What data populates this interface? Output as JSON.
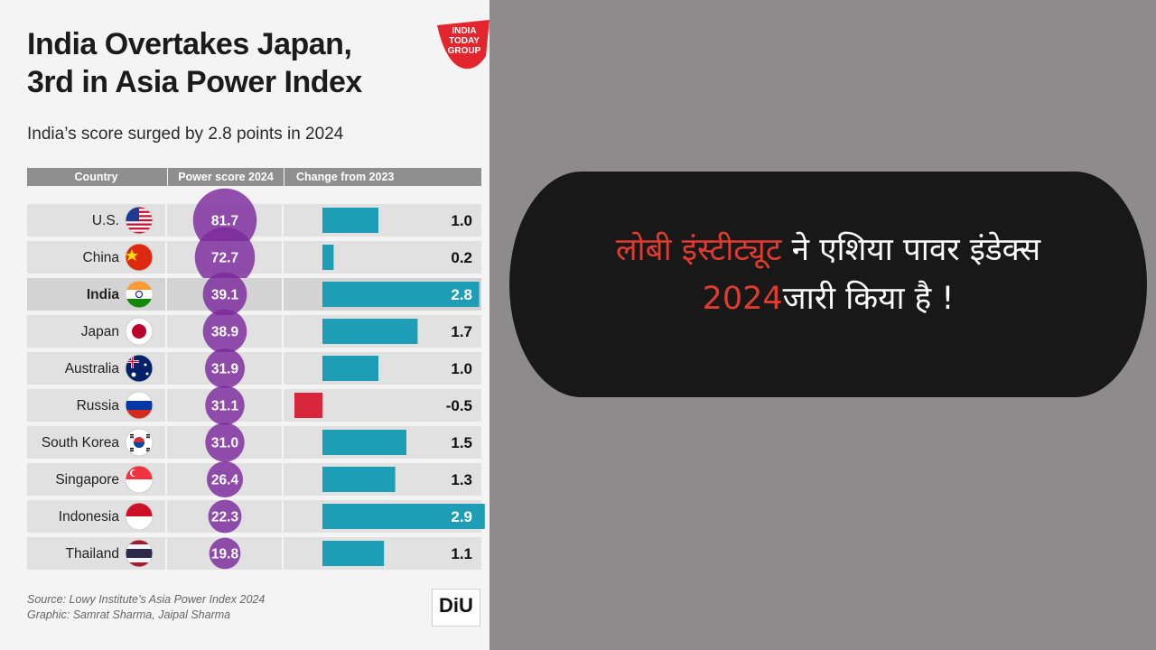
{
  "infographic": {
    "title_line1": "India Overtakes Japan,",
    "title_line2": "3rd in Asia Power Index",
    "subtitle": "India’s score surged by 2.8 points in 2024",
    "logo_lines": [
      "INDIA",
      "TODAY",
      "GROUP"
    ],
    "source_line1": "Source: Lowy Institute’s Asia Power Index 2024",
    "source_line2": "Graphic: Samrat Sharma, Jaipal Sharma",
    "diu_logo": "DiU"
  },
  "callout": {
    "line1_red": "लोबी इंस्टीट्यूट",
    "line1_white": " ने एशिया पावर इंडेक्स",
    "line2_red": "2024",
    "line2_white": "जारी किया है !"
  },
  "chart_data": {
    "type": "table",
    "columns": [
      "Country",
      "Power score 2024",
      "Change from 2023"
    ],
    "highlighted_country": "India",
    "colors": {
      "score_bubble": "#7b2a9c",
      "positive_bar": "#1d9db6",
      "negative_bar": "#d9263b",
      "row_bg": "#e1e1e1",
      "row_highlight": "#d3d3d3"
    },
    "rows": [
      {
        "country": "U.S.",
        "flag": "us-flag",
        "score": 81.7,
        "change": 1.0,
        "score_label": "81.7",
        "change_label": "1.0"
      },
      {
        "country": "China",
        "flag": "china-flag",
        "score": 72.7,
        "change": 0.2,
        "score_label": "72.7",
        "change_label": "0.2"
      },
      {
        "country": "India",
        "flag": "india-flag",
        "score": 39.1,
        "change": 2.8,
        "score_label": "39.1",
        "change_label": "2.8"
      },
      {
        "country": "Japan",
        "flag": "japan-flag",
        "score": 38.9,
        "change": 1.7,
        "score_label": "38.9",
        "change_label": "1.7"
      },
      {
        "country": "Australia",
        "flag": "australia-flag",
        "score": 31.9,
        "change": 1.0,
        "score_label": "31.9",
        "change_label": "1.0"
      },
      {
        "country": "Russia",
        "flag": "russia-flag",
        "score": 31.1,
        "change": -0.5,
        "score_label": "31.1",
        "change_label": "-0.5"
      },
      {
        "country": "South Korea",
        "flag": "south-korea-flag",
        "score": 31.0,
        "change": 1.5,
        "score_label": "31.0",
        "change_label": "1.5"
      },
      {
        "country": "Singapore",
        "flag": "singapore-flag",
        "score": 26.4,
        "change": 1.3,
        "score_label": "26.4",
        "change_label": "1.3"
      },
      {
        "country": "Indonesia",
        "flag": "indonesia-flag",
        "score": 22.3,
        "change": 2.9,
        "score_label": "22.3",
        "change_label": "2.9"
      },
      {
        "country": "Thailand",
        "flag": "thailand-flag",
        "score": 19.8,
        "change": 1.1,
        "score_label": "19.8",
        "change_label": "1.1"
      }
    ]
  }
}
